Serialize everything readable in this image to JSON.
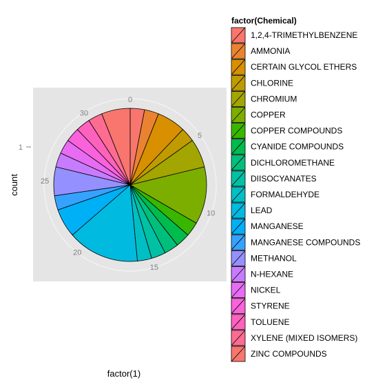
{
  "chart_data": {
    "type": "pie",
    "xlabel": "factor(1)",
    "ylabel": "count",
    "y_tick_label": "1",
    "theta_ticks": [
      0,
      5,
      10,
      15,
      20,
      25,
      30
    ],
    "total": 33,
    "legend": {
      "title": "factor(Chemical)",
      "position": "right"
    },
    "categories": [
      "1,2,4-TRIMETHYLBENZENE",
      "AMMONIA",
      "CERTAIN GLYCOL ETHERS",
      "CHLORINE",
      "CHROMIUM",
      "COPPER",
      "COPPER COMPOUNDS",
      "CYANIDE COMPOUNDS",
      "DICHLOROMETHANE",
      "DIISOCYANATES",
      "FORMALDEHYDE",
      "LEAD",
      "MANGANESE",
      "MANGANESE COMPOUNDS",
      "METHANOL",
      "N-HEXANE",
      "NICKEL",
      "STYRENE",
      "TOLUENE",
      "XYLENE (MIXED ISOMERS)",
      "ZINC COMPOUNDS"
    ],
    "values": [
      1,
      1,
      2,
      1,
      2,
      4,
      1,
      1,
      1,
      1,
      1,
      5,
      2,
      1,
      2,
      1,
      1,
      1,
      1,
      1,
      2
    ],
    "colors": [
      "#F8766D",
      "#EA8331",
      "#D89000",
      "#C09B00",
      "#A3A500",
      "#7CAE00",
      "#39B600",
      "#00BB4E",
      "#00BF7D",
      "#00C1A3",
      "#00BFC4",
      "#00BAE0",
      "#00B0F6",
      "#35A2FF",
      "#9590FF",
      "#C77CFF",
      "#E76BF3",
      "#FA62DB",
      "#FF62BC",
      "#FF6C91",
      "#F8766D"
    ]
  }
}
